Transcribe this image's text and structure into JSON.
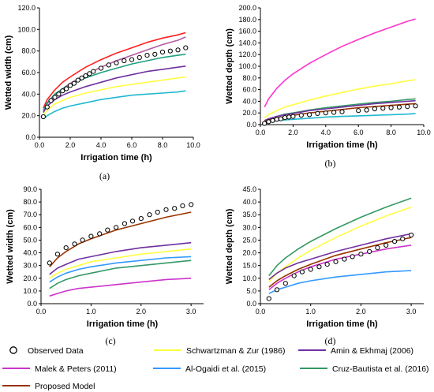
{
  "chart_data": [
    {
      "id": "a",
      "type": "line",
      "panel_label": "(a)",
      "xlabel": "Irrigation time (h)",
      "ylabel": "Wetted width (cm)",
      "xlim": [
        0,
        10
      ],
      "ylim": [
        0,
        120
      ],
      "xticks": [
        0,
        2,
        4,
        6,
        8,
        10
      ],
      "yticks": [
        0,
        20,
        40,
        60,
        80,
        100,
        120
      ],
      "tick_decimals": 1,
      "observed": {
        "x": [
          0.25,
          0.5,
          0.75,
          1.0,
          1.25,
          1.5,
          1.75,
          2.0,
          2.25,
          2.5,
          2.75,
          3.0,
          3.25,
          3.5,
          4.0,
          4.5,
          5.0,
          5.5,
          6.0,
          6.5,
          7.0,
          7.5,
          8.0,
          8.5,
          9.0,
          9.5
        ],
        "y": [
          19,
          28,
          34,
          37,
          40,
          43,
          45,
          48,
          50,
          53,
          55,
          57,
          59,
          61,
          64,
          67,
          69,
          71,
          72,
          74,
          76,
          77,
          79,
          80,
          81,
          83
        ]
      },
      "series": [
        {
          "key": "proposed",
          "x": [
            0.25,
            0.5,
            1,
            1.5,
            2,
            3,
            4,
            5,
            6,
            7,
            8,
            9,
            9.5
          ],
          "values": [
            24,
            31,
            39,
            45,
            50,
            58,
            65,
            71,
            76,
            81,
            86,
            90,
            93
          ]
        },
        {
          "key": "malek",
          "x": [
            0.25,
            0.5,
            1,
            1.5,
            2,
            3,
            4,
            5,
            6,
            7,
            8,
            9,
            9.5
          ],
          "values": [
            27,
            35,
            44,
            51,
            56,
            65,
            72,
            78,
            83,
            88,
            92,
            95,
            97
          ]
        },
        {
          "key": "cruz",
          "x": [
            0.25,
            0.5,
            1,
            1.5,
            2,
            3,
            4,
            5,
            6,
            7,
            8,
            9,
            9.5
          ],
          "values": [
            25,
            32,
            40,
            45,
            49,
            55,
            60,
            64,
            68,
            71,
            74,
            76,
            77
          ]
        },
        {
          "key": "amin",
          "x": [
            0.25,
            0.5,
            1,
            1.5,
            2,
            3,
            4,
            5,
            6,
            7,
            8,
            9,
            9.5
          ],
          "values": [
            23,
            29,
            35,
            39,
            42,
            47,
            51,
            55,
            58,
            61,
            63,
            65,
            66
          ]
        },
        {
          "key": "schwartzman",
          "x": [
            0.25,
            0.5,
            1,
            1.5,
            2,
            3,
            4,
            5,
            6,
            7,
            8,
            9,
            9.5
          ],
          "values": [
            20,
            25,
            31,
            34,
            37,
            41,
            44,
            47,
            49,
            51,
            53,
            55,
            56
          ]
        },
        {
          "key": "ogaidi",
          "x": [
            0.25,
            0.5,
            1,
            1.5,
            2,
            3,
            4,
            5,
            6,
            7,
            8,
            9,
            9.5
          ],
          "values": [
            17,
            20,
            24,
            27,
            29,
            32,
            35,
            37,
            39,
            40,
            41,
            42,
            43
          ]
        }
      ]
    },
    {
      "id": "b",
      "type": "line",
      "panel_label": "(b)",
      "xlabel": "Irrigation time (h)",
      "ylabel": "Wetted depth (cm)",
      "xlim": [
        0,
        10
      ],
      "ylim": [
        0,
        200
      ],
      "xticks": [
        0,
        2,
        4,
        6,
        8,
        10
      ],
      "yticks": [
        0,
        20,
        40,
        60,
        80,
        100,
        120,
        140,
        160,
        180,
        200
      ],
      "tick_decimals": 1,
      "observed": {
        "x": [
          0.25,
          0.5,
          0.75,
          1.0,
          1.25,
          1.5,
          1.75,
          2.0,
          2.5,
          3.0,
          3.5,
          4.0,
          4.5,
          5.0,
          6.0,
          6.5,
          7.0,
          7.5,
          8.0,
          8.5,
          9.0,
          9.5
        ],
        "y": [
          2,
          5,
          7,
          9,
          10,
          12,
          13,
          14,
          16,
          17,
          19,
          20,
          21,
          22,
          24,
          25,
          27,
          28,
          29,
          30,
          31,
          32
        ]
      },
      "series": [
        {
          "key": "malek",
          "x": [
            0.25,
            0.5,
            1,
            1.5,
            2,
            3,
            4,
            5,
            6,
            7,
            8,
            9,
            9.5
          ],
          "values": [
            30,
            44,
            62,
            76,
            87,
            105,
            120,
            134,
            146,
            157,
            167,
            177,
            181
          ]
        },
        {
          "key": "schwartzman",
          "x": [
            0.25,
            0.5,
            1,
            1.5,
            2,
            3,
            4,
            5,
            6,
            7,
            8,
            9,
            9.5
          ],
          "values": [
            12,
            17,
            24,
            30,
            34,
            42,
            49,
            55,
            61,
            66,
            70,
            75,
            77
          ]
        },
        {
          "key": "cruz",
          "x": [
            0.25,
            0.5,
            1,
            1.5,
            2,
            3,
            4,
            5,
            6,
            7,
            8,
            9,
            9.5
          ],
          "values": [
            7,
            10,
            14,
            18,
            20,
            25,
            29,
            32,
            35,
            38,
            40,
            43,
            44
          ]
        },
        {
          "key": "amin",
          "x": [
            0.25,
            0.5,
            1,
            1.5,
            2,
            3,
            4,
            5,
            6,
            7,
            8,
            9,
            9.5
          ],
          "values": [
            7,
            10,
            14,
            17,
            19,
            24,
            27,
            30,
            33,
            36,
            38,
            40,
            41
          ]
        },
        {
          "key": "proposed",
          "x": [
            0.25,
            0.5,
            1,
            1.5,
            2,
            3,
            4,
            5,
            6,
            7,
            8,
            9,
            9.5
          ],
          "values": [
            5,
            8,
            11,
            14,
            16,
            20,
            23,
            26,
            29,
            31,
            33,
            35,
            36
          ]
        },
        {
          "key": "ogaidi",
          "x": [
            0.25,
            0.5,
            1,
            1.5,
            2,
            3,
            4,
            5,
            6,
            7,
            8,
            9,
            9.5
          ],
          "values": [
            3,
            5,
            7,
            8,
            9,
            11,
            13,
            14,
            15,
            16,
            17,
            18,
            19
          ]
        }
      ]
    },
    {
      "id": "c",
      "type": "line",
      "panel_label": "(c)",
      "xlabel": "Irrigation time (h)",
      "ylabel": "Wetted width (cm)",
      "xlim": [
        0,
        3.25
      ],
      "ylim": [
        0,
        90
      ],
      "xticks": [
        0,
        1,
        2,
        3
      ],
      "yticks": [
        0,
        10,
        20,
        30,
        40,
        50,
        60,
        70,
        80,
        90
      ],
      "tick_decimals": 1,
      "observed": {
        "x": [
          0.17,
          0.33,
          0.5,
          0.67,
          0.83,
          1.0,
          1.17,
          1.33,
          1.5,
          1.67,
          1.83,
          2.0,
          2.17,
          2.33,
          2.5,
          2.67,
          2.83,
          3.0
        ],
        "y": [
          32,
          39,
          44,
          47,
          50,
          53,
          55,
          58,
          60,
          63,
          65,
          67,
          70,
          72,
          74,
          75,
          77,
          78
        ]
      },
      "series": [
        {
          "key": "proposed",
          "x": [
            0.17,
            0.33,
            0.5,
            0.75,
            1,
            1.5,
            2,
            2.5,
            3
          ],
          "values": [
            29,
            36,
            41,
            47,
            51,
            58,
            63,
            68,
            72
          ]
        },
        {
          "key": "amin",
          "x": [
            0.17,
            0.33,
            0.5,
            0.75,
            1,
            1.5,
            2,
            2.5,
            3
          ],
          "values": [
            23,
            28,
            31,
            35,
            37,
            41,
            44,
            46,
            48
          ]
        },
        {
          "key": "schwartzman",
          "x": [
            0.17,
            0.33,
            0.5,
            0.75,
            1,
            1.5,
            2,
            2.5,
            3
          ],
          "values": [
            20,
            24,
            27,
            30,
            33,
            36,
            39,
            41,
            43
          ]
        },
        {
          "key": "ogaidi",
          "x": [
            0.17,
            0.33,
            0.5,
            0.75,
            1,
            1.5,
            2,
            2.5,
            3
          ],
          "values": [
            17,
            21,
            24,
            27,
            29,
            32,
            34,
            36,
            37
          ]
        },
        {
          "key": "cruz",
          "x": [
            0.17,
            0.33,
            0.5,
            0.75,
            1,
            1.5,
            2,
            2.5,
            3
          ],
          "values": [
            12,
            16,
            19,
            22,
            24,
            28,
            30,
            32,
            34
          ]
        },
        {
          "key": "malek",
          "x": [
            0.17,
            0.33,
            0.5,
            0.75,
            1,
            1.5,
            2,
            2.5,
            3
          ],
          "values": [
            6,
            8,
            10,
            12,
            13,
            15,
            17,
            19,
            20
          ]
        }
      ]
    },
    {
      "id": "d",
      "type": "line",
      "panel_label": "(d)",
      "xlabel": "Irrigation time (h)",
      "ylabel": "Wetted depth (cm)",
      "xlim": [
        0,
        3.25
      ],
      "ylim": [
        0,
        45
      ],
      "xticks": [
        0,
        1,
        2,
        3
      ],
      "yticks": [
        0,
        5,
        10,
        15,
        20,
        25,
        30,
        35,
        40,
        45
      ],
      "tick_decimals": 1,
      "observed": {
        "x": [
          0.17,
          0.33,
          0.5,
          0.67,
          0.83,
          1.0,
          1.17,
          1.33,
          1.5,
          1.67,
          1.83,
          2.0,
          2.17,
          2.33,
          2.5,
          2.67,
          2.83,
          3.0
        ],
        "y": [
          2,
          5.5,
          8,
          11,
          12.5,
          13.5,
          14.5,
          15.5,
          16.5,
          17.5,
          18.5,
          19.5,
          20.5,
          22,
          23,
          24.5,
          25.5,
          27
        ]
      },
      "series": [
        {
          "key": "cruz",
          "x": [
            0.17,
            0.33,
            0.5,
            0.75,
            1,
            1.5,
            2,
            2.5,
            3
          ],
          "values": [
            11,
            15,
            18,
            21.5,
            24.5,
            29.5,
            34,
            38,
            41.5
          ]
        },
        {
          "key": "schwartzman",
          "x": [
            0.17,
            0.33,
            0.5,
            0.75,
            1,
            1.5,
            2,
            2.5,
            3
          ],
          "values": [
            8.5,
            12,
            14.5,
            18,
            21,
            26,
            30.5,
            34.5,
            38
          ]
        },
        {
          "key": "amin",
          "x": [
            0.17,
            0.33,
            0.5,
            0.75,
            1,
            1.5,
            2,
            2.5,
            3
          ],
          "values": [
            9.5,
            12,
            14,
            16,
            17.5,
            20.5,
            23,
            25.5,
            27.5
          ]
        },
        {
          "key": "proposed",
          "x": [
            0.17,
            0.33,
            0.5,
            0.75,
            1,
            1.5,
            2,
            2.5,
            3
          ],
          "values": [
            6.5,
            9,
            11,
            13.5,
            15.5,
            19,
            21.5,
            24,
            26
          ]
        },
        {
          "key": "malek",
          "x": [
            0.17,
            0.33,
            0.5,
            0.75,
            1,
            1.5,
            2,
            2.5,
            3
          ],
          "values": [
            5.5,
            8,
            10,
            12.5,
            14.5,
            17.5,
            19.5,
            21.5,
            23
          ]
        },
        {
          "key": "ogaidi",
          "x": [
            0.17,
            0.33,
            0.5,
            0.75,
            1,
            1.5,
            2,
            2.5,
            3
          ],
          "values": [
            4,
            5.5,
            6.5,
            8,
            9,
            10.5,
            11.5,
            12.5,
            13
          ]
        }
      ]
    }
  ],
  "legend": {
    "observed": {
      "label": "Observed Data"
    },
    "schwartzman": {
      "label": "Schwartzman & Zur (1986)",
      "color": "#ffff40"
    },
    "amin": {
      "label": "Amin & Ekhmaj (2006)",
      "color": "#7030a0"
    },
    "malek": {
      "label": "Malek & Peters (2011)",
      "color": "#cc33cc"
    },
    "ogaidi": {
      "label": "Al-Ogaidi et al. (2015)",
      "color": "#3399ff"
    },
    "cruz": {
      "label": "Cruz-Bautista et al. (2016)",
      "color": "#339966"
    },
    "proposed": {
      "label": "Proposed Model",
      "color": "#993300"
    }
  },
  "panel_overrides": {
    "a": {
      "malek": "#ff2020",
      "proposed": "#b25aa5",
      "amin": "#7030a0",
      "cruz": "#20a080",
      "schwartzman": "#ffff40",
      "ogaidi": "#20b8d0"
    },
    "b": {
      "malek": "#ff33cc",
      "schwartzman": "#ffff40",
      "cruz": "#339966",
      "amin": "#7030a0",
      "proposed": "#993300",
      "ogaidi": "#20b8d0"
    }
  }
}
